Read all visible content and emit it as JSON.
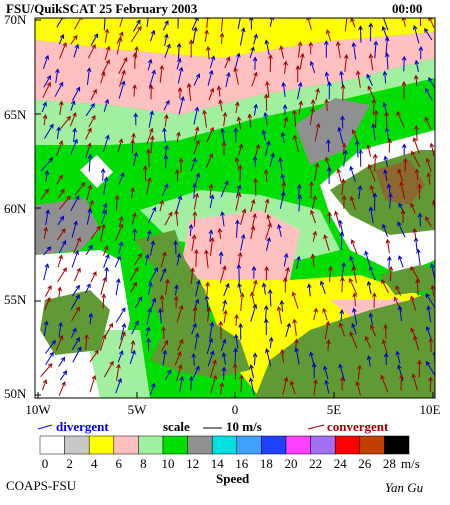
{
  "header": {
    "title": "FSU/QuikSCAT 25 February 2003",
    "time": "00:00"
  },
  "map": {
    "lat_labels": [
      "70N",
      "65N",
      "60N",
      "55N",
      "50N"
    ],
    "lon_labels": [
      "10W",
      "5W",
      "0",
      "5E",
      "10E"
    ]
  },
  "legend": {
    "divergent": "divergent",
    "scale": "scale",
    "scale_value": "10 m/s",
    "convergent": "convergent"
  },
  "colorbar": {
    "labels": [
      "0",
      "2",
      "4",
      "6",
      "8",
      "10",
      "12",
      "14",
      "16",
      "18",
      "20",
      "22",
      "24",
      "26",
      "28"
    ],
    "colors": [
      "#ffffff",
      "#c8c8c8",
      "#ffff00",
      "#ffc0c0",
      "#a0f0a0",
      "#00e000",
      "#909090",
      "#00e0e0",
      "#40a0ff",
      "#2040ff",
      "#ff40ff",
      "#a070f0",
      "#ff0000",
      "#c04000",
      "#000000"
    ],
    "unit": "m/s",
    "title": "Speed"
  },
  "footer": {
    "left": "COAPS-FSU",
    "right": "Yan Gu"
  }
}
